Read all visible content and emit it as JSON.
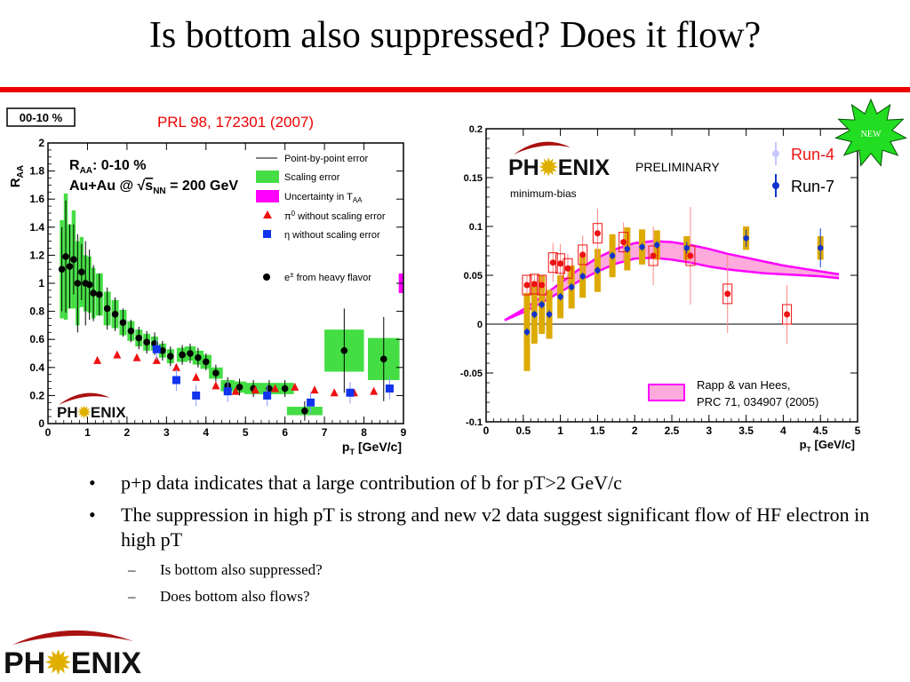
{
  "slide": {
    "title": "Is bottom also suppressed? Does it flow?",
    "new_badge": "NEW",
    "logo_text_left": "PH",
    "logo_text_right": "ENIX",
    "bullets": [
      {
        "text": "p+p data indicates that a large contribution of b for pT>2 GeV/c"
      },
      {
        "text": "The suppression in high pT is strong and new v2 data suggest significant flow of HF electron in high pT"
      }
    ],
    "sub_bullets": [
      {
        "text": "Is bottom also suppressed?"
      },
      {
        "text": "Does bottom also flows?"
      }
    ],
    "colors": {
      "title_rule": "#ee0000",
      "new_badge": "#22dd22",
      "logo_swoosh": "#aa1111"
    }
  },
  "chart_data": [
    {
      "type": "scatter",
      "quantity": "RAA",
      "box_label": "00-10 %",
      "reference": "PRL 98, 172301 (2007)",
      "inset_line1": "R",
      "inset_line1_sub": "AA",
      "inset_line1_rest": ": 0-10 %",
      "inset_line2_pre": "Au+Au @ ",
      "inset_line2_sqrt": "s",
      "inset_line2_sub": "NN",
      "inset_line2_post": " = 200 GeV",
      "ylabel": "R",
      "ylabel_sub": "AA",
      "xlabel": "p",
      "xlabel_sub": "T",
      "xlabel_units": "[GeV/c]",
      "xlim": [
        0,
        9
      ],
      "ylim": [
        0,
        2
      ],
      "x_ticks": [
        "0",
        "1",
        "2",
        "3",
        "4",
        "5",
        "6",
        "7",
        "8",
        "9"
      ],
      "y_ticks": [
        "0",
        "0.2",
        "0.4",
        "0.6",
        "0.8",
        "1",
        "1.2",
        "1.4",
        "1.6",
        "1.8",
        "2"
      ],
      "legend_position": "top-right",
      "legend": [
        "Point-by-point error",
        "Scaling error",
        "Uncertainty in T",
        "π",
        "η without scaling error",
        "e"
      ],
      "legend_tail": {
        "taa_sub": "AA",
        "pi0_sup": "0",
        "pi0_rest": " without scaling error",
        "e_sup": "±",
        "e_rest": " from heavy flavor"
      },
      "colors": {
        "electron": "#000000",
        "scaling": "#44dd44",
        "taa": "#ff00ff",
        "pi0": "#ee1111",
        "eta": "#1133ee"
      },
      "series": [
        {
          "name": "e± from heavy flavor",
          "x": [
            0.35,
            0.45,
            0.55,
            0.65,
            0.75,
            0.85,
            0.95,
            1.05,
            1.15,
            1.3,
            1.5,
            1.7,
            1.9,
            2.1,
            2.3,
            2.5,
            2.7,
            2.9,
            3.1,
            3.4,
            3.6,
            3.8,
            4.0,
            4.25,
            4.55,
            4.85,
            5.2,
            5.6,
            6.0,
            6.5,
            7.5,
            8.5
          ],
          "y": [
            1.1,
            1.19,
            1.12,
            1.17,
            1.0,
            1.08,
            1.0,
            0.99,
            0.93,
            0.92,
            0.82,
            0.78,
            0.72,
            0.66,
            0.61,
            0.58,
            0.57,
            0.52,
            0.48,
            0.49,
            0.5,
            0.47,
            0.44,
            0.36,
            0.27,
            0.26,
            0.25,
            0.25,
            0.25,
            0.09,
            0.52,
            0.46
          ],
          "err": [
            0.3,
            0.4,
            0.3,
            0.25,
            0.35,
            0.2,
            0.3,
            0.25,
            0.2,
            0.15,
            0.15,
            0.12,
            0.1,
            0.08,
            0.08,
            0.08,
            0.08,
            0.07,
            0.07,
            0.07,
            0.07,
            0.07,
            0.06,
            0.06,
            0.06,
            0.06,
            0.06,
            0.06,
            0.06,
            0.07,
            0.3,
            0.3
          ],
          "band_half": [
            0.35,
            0.45,
            0.3,
            0.35,
            0.3,
            0.25,
            0.2,
            0.2,
            0.18,
            0.15,
            0.12,
            0.1,
            0.09,
            0.07,
            0.06,
            0.06,
            0.05,
            0.05,
            0.05,
            0.05,
            0.05,
            0.05,
            0.05,
            0.04,
            0.04,
            0.04,
            0.04,
            0.04,
            0.04,
            0.03,
            0.15,
            0.15
          ],
          "band_width": [
            0.1,
            0.1,
            0.1,
            0.1,
            0.1,
            0.1,
            0.1,
            0.1,
            0.1,
            0.18,
            0.18,
            0.18,
            0.18,
            0.18,
            0.18,
            0.18,
            0.18,
            0.18,
            0.18,
            0.28,
            0.28,
            0.28,
            0.28,
            0.35,
            0.35,
            0.35,
            0.45,
            0.45,
            0.45,
            0.9,
            1.0,
            0.8
          ]
        },
        {
          "name": "π0 without scaling error",
          "x": [
            1.25,
            1.75,
            2.25,
            2.75,
            3.25,
            3.75,
            4.25,
            4.75,
            5.25,
            5.75,
            6.25,
            6.75,
            7.25,
            7.75,
            8.25
          ],
          "y": [
            0.45,
            0.49,
            0.47,
            0.45,
            0.4,
            0.33,
            0.27,
            0.23,
            0.24,
            0.25,
            0.26,
            0.24,
            0.22,
            0.22,
            0.23
          ]
        },
        {
          "name": "η without scaling error",
          "x": [
            2.75,
            3.25,
            3.75,
            4.55,
            5.55,
            6.65,
            7.65,
            8.65
          ],
          "y": [
            0.53,
            0.31,
            0.2,
            0.23,
            0.2,
            0.15,
            0.22,
            0.25
          ]
        }
      ]
    },
    {
      "type": "scatter",
      "quantity": "v2",
      "preliminary": "PRELIMINARY",
      "selection": "minimum-bias",
      "model_line1": "Rapp & van Hees,",
      "model_line2": "PRC 71, 034907 (2005)",
      "xlabel": "p",
      "xlabel_sub": "T",
      "xlabel_units": "[GeV/c]",
      "xlim": [
        0,
        5
      ],
      "ylim": [
        -0.1,
        0.2
      ],
      "x_ticks": [
        "0",
        "0.5",
        "1",
        "1.5",
        "2",
        "2.5",
        "3",
        "3.5",
        "4",
        "4.5",
        "5"
      ],
      "y_ticks": [
        "-0.1",
        "-0.05",
        "0",
        "0.05",
        "0.1",
        "0.15",
        "0.2"
      ],
      "legend_position": "top-right",
      "colors": {
        "run4": "#ee1111",
        "run7": "#1133cc",
        "run4_marker": "#c8c8ff",
        "sys": "#ddaa00",
        "model": "#ff66dd"
      },
      "model_band": {
        "x": [
          0.25,
          0.5,
          0.75,
          1.0,
          1.25,
          1.5,
          1.75,
          2.0,
          2.25,
          2.5,
          2.75,
          3.0,
          3.25,
          3.5,
          3.75,
          4.0,
          4.25,
          4.5,
          4.75
        ],
        "upper": [
          0.004,
          0.015,
          0.028,
          0.042,
          0.056,
          0.068,
          0.077,
          0.083,
          0.085,
          0.084,
          0.081,
          0.077,
          0.072,
          0.068,
          0.064,
          0.06,
          0.057,
          0.054,
          0.051
        ],
        "lower": [
          0.004,
          0.012,
          0.022,
          0.033,
          0.044,
          0.054,
          0.062,
          0.067,
          0.068,
          0.066,
          0.063,
          0.059,
          0.056,
          0.054,
          0.052,
          0.051,
          0.05,
          0.049,
          0.047
        ]
      },
      "series": [
        {
          "name": "Run-4",
          "x": [
            0.55,
            0.65,
            0.75,
            0.9,
            1.0,
            1.1,
            1.3,
            1.5,
            1.85,
            2.25,
            2.75,
            3.25,
            4.05
          ],
          "y": [
            0.04,
            0.041,
            0.04,
            0.063,
            0.062,
            0.057,
            0.071,
            0.093,
            0.084,
            0.07,
            0.07,
            0.031,
            0.01
          ],
          "err": [
            0.01,
            0.01,
            0.01,
            0.02,
            0.02,
            0.015,
            0.02,
            0.025,
            0.02,
            0.03,
            0.05,
            0.04,
            0.03
          ]
        },
        {
          "name": "Run-7",
          "x": [
            0.55,
            0.65,
            0.75,
            0.85,
            1.0,
            1.15,
            1.3,
            1.5,
            1.7,
            1.9,
            2.1,
            2.3,
            2.7,
            3.5,
            4.5
          ],
          "y": [
            -0.008,
            0.01,
            0.02,
            0.01,
            0.028,
            0.038,
            0.049,
            0.055,
            0.07,
            0.077,
            0.079,
            0.081,
            0.078,
            0.088,
            0.078
          ],
          "err": [
            0.004,
            0.004,
            0.004,
            0.004,
            0.004,
            0.004,
            0.004,
            0.004,
            0.004,
            0.004,
            0.004,
            0.004,
            0.006,
            0.009,
            0.02
          ],
          "sys": [
            0.04,
            0.03,
            0.03,
            0.025,
            0.022,
            0.022,
            0.022,
            0.022,
            0.022,
            0.022,
            0.018,
            0.015,
            0.012,
            0.012,
            0.012
          ]
        }
      ]
    }
  ]
}
